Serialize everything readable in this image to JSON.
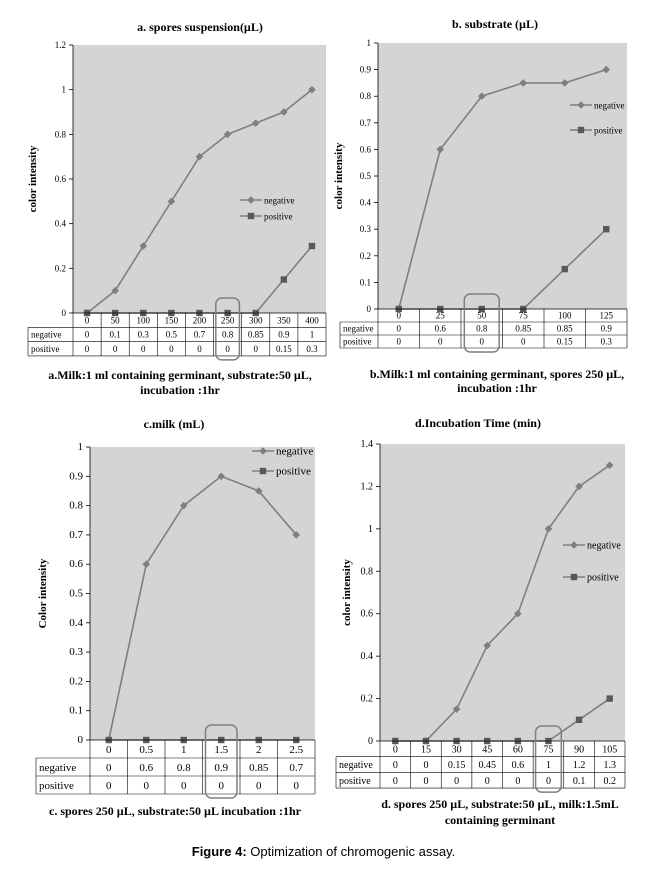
{
  "figure_caption": {
    "label": "Figure 4:",
    "text": " Optimization of chromogenic assay."
  },
  "colors": {
    "plot_bg": "#d4d4d4",
    "line": "#7f7f7f",
    "marker_neg": "#7f7f7f",
    "marker_pos": "#595959",
    "grid": "#ffffff",
    "highlight": "#7f7f7f"
  },
  "chart_data": [
    {
      "type": "line",
      "title": "a. spores suspension(µL)",
      "ylabel": "color intensity",
      "ylim": [
        0,
        1.2
      ],
      "yticks": [
        "0",
        "0.2",
        "0.4",
        "0.6",
        "0.8",
        "1",
        "1.2"
      ],
      "categories": [
        "0",
        "50",
        "100",
        "150",
        "200",
        "250",
        "300",
        "350",
        "400"
      ],
      "series": [
        {
          "name": "negative",
          "values": [
            0,
            0.1,
            0.3,
            0.5,
            0.7,
            0.8,
            0.85,
            0.9,
            1
          ],
          "labels": [
            "0",
            "0.1",
            "0.3",
            "0.5",
            "0.7",
            "0.8",
            "0.85",
            "0.9",
            "1"
          ]
        },
        {
          "name": "positive",
          "values": [
            0,
            0,
            0,
            0,
            0,
            0,
            0,
            0.15,
            0.3
          ],
          "labels": [
            "0",
            "0",
            "0",
            "0",
            "0",
            "0",
            "0",
            "0.15",
            "0.3"
          ]
        }
      ],
      "highlight_index": 5,
      "legend": "right-middle",
      "caption_lines": [
        "a.Milk:1 ml containing germinant, substrate:50 µL,",
        "incubation :1hr"
      ]
    },
    {
      "type": "line",
      "title": "b. substrate (µL)",
      "ylabel": "color intensity",
      "ylim": [
        0,
        1
      ],
      "yticks": [
        "0",
        "0.1",
        "0.2",
        "0.3",
        "0.4",
        "0.5",
        "0.6",
        "0.7",
        "0.8",
        "0.9",
        "1"
      ],
      "categories": [
        "0",
        "25",
        "50",
        "75",
        "100",
        "125"
      ],
      "series": [
        {
          "name": "negative",
          "values": [
            0,
            0.6,
            0.8,
            0.85,
            0.85,
            0.9
          ],
          "labels": [
            "0",
            "0.6",
            "0.8",
            "0.85",
            "0.85",
            "0.9"
          ]
        },
        {
          "name": "positive",
          "values": [
            0,
            0,
            0,
            0,
            0.15,
            0.3
          ],
          "labels": [
            "0",
            "0",
            "0",
            "0",
            "0.15",
            "0.3"
          ]
        }
      ],
      "highlight_index": 2,
      "legend": "top-right",
      "caption_lines": [
        "b.Milk:1 ml containing germinant, spores 250 µL,",
        "incubation :1hr"
      ]
    },
    {
      "type": "line",
      "title": "c.milk (mL)",
      "ylabel": "Color intensity",
      "ylim": [
        0,
        1
      ],
      "yticks": [
        "0",
        "0.1",
        "0.2",
        "0.3",
        "0.4",
        "0.5",
        "0.6",
        "0.7",
        "0.8",
        "0.9",
        "1"
      ],
      "categories": [
        "0",
        "0.5",
        "1",
        "1.5",
        "2",
        "2.5"
      ],
      "series": [
        {
          "name": "negative",
          "values": [
            0,
            0.6,
            0.8,
            0.9,
            0.85,
            0.7
          ],
          "labels": [
            "0",
            "0.6",
            "0.8",
            "0.9",
            "0.85",
            "0.7"
          ]
        },
        {
          "name": "positive",
          "values": [
            0,
            0,
            0,
            0,
            0,
            0
          ],
          "labels": [
            "0",
            "0",
            "0",
            "0",
            "0",
            "0"
          ]
        }
      ],
      "highlight_index": 3,
      "legend": "top-right",
      "caption_lines": [
        "c. spores 250 µL, substrate:50 µL incubation :1hr"
      ]
    },
    {
      "type": "line",
      "title": "d.Incubation Time (min)",
      "ylabel": "color intensity",
      "ylim": [
        0,
        1.4
      ],
      "yticks": [
        "0",
        "0.2",
        "0.4",
        "0.6",
        "0.8",
        "1",
        "1.2",
        "1.4"
      ],
      "categories": [
        "0",
        "15",
        "30",
        "45",
        "60",
        "75",
        "90",
        "105"
      ],
      "series": [
        {
          "name": "negative",
          "values": [
            0,
            0,
            0.15,
            0.45,
            0.6,
            1,
            1.2,
            1.3
          ],
          "labels": [
            "0",
            "0",
            "0.15",
            "0.45",
            "0.6",
            "1",
            "1.2",
            "1.3"
          ]
        },
        {
          "name": "positive",
          "values": [
            0,
            0,
            0,
            0,
            0,
            0,
            0.1,
            0.2
          ],
          "labels": [
            "0",
            "0",
            "0",
            "0",
            "0",
            "0",
            "0.1",
            "0.2"
          ]
        }
      ],
      "highlight_index": 5,
      "legend": "right-middle",
      "caption_lines": [
        "d. spores 250 µL, substrate:50 µL, milk:1.5mL",
        "containing germinant"
      ]
    }
  ]
}
